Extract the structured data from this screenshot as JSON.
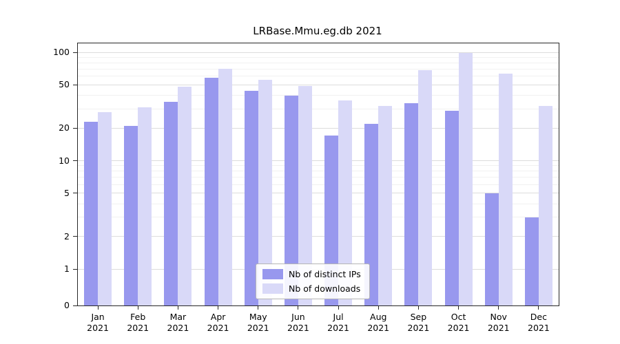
{
  "title": "LRBase.Mmu.eg.db 2021",
  "chart_data": {
    "type": "bar",
    "title": "LRBase.Mmu.eg.db 2021",
    "categories": [
      "Jan",
      "Feb",
      "Mar",
      "Apr",
      "May",
      "Jun",
      "Jul",
      "Aug",
      "Sep",
      "Oct",
      "Nov",
      "Dec"
    ],
    "year_label": "2021",
    "series": [
      {
        "name": "Nb of distinct IPs",
        "color": "#9898ee",
        "values": [
          23,
          21,
          35,
          58,
          44,
          40,
          17,
          22,
          34,
          29,
          5,
          3
        ]
      },
      {
        "name": "Nb of downloads",
        "color": "#d9d9f8",
        "values": [
          28,
          31,
          48,
          70,
          56,
          49,
          36,
          32,
          68,
          98,
          64,
          32
        ]
      }
    ],
    "xlabel": "",
    "ylabel": "",
    "yscale": "log",
    "yticks": [
      0,
      1,
      2,
      5,
      10,
      20,
      50,
      100
    ],
    "minor_yticks": [
      3,
      4,
      6,
      7,
      8,
      9,
      30,
      40,
      60,
      70,
      80,
      90
    ],
    "ylim": [
      0,
      110
    ],
    "grid": "on",
    "legend_position": "bottom-center",
    "grid_color_major": "#dcdcdc",
    "grid_color_minor": "#f1f1f1"
  }
}
